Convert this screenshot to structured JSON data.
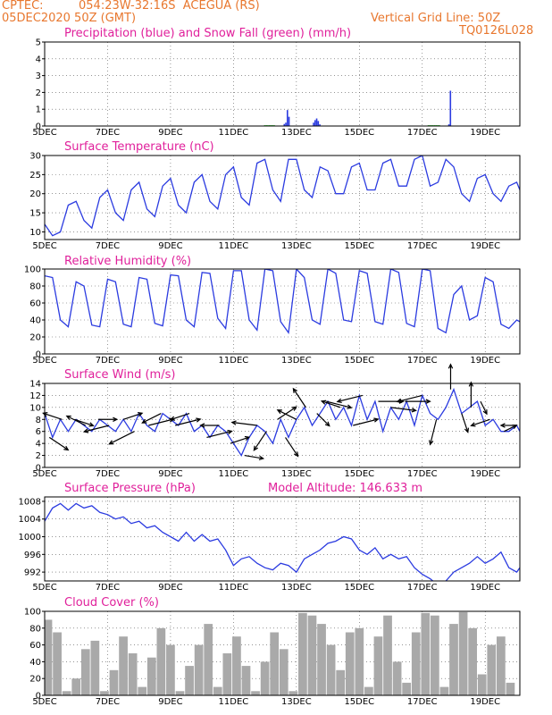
{
  "header": {
    "source": "CPTEC:",
    "location": "054:23W-32:16S  ACEGUA (RS)",
    "run": "05DEC2020 50Z (GMT)",
    "grid_note": "Vertical Grid Line: 50Z",
    "model_code": "TQ0126L028"
  },
  "colors": {
    "header": "#e8772e",
    "title": "#e0209b",
    "series": "#2b3be0",
    "snow": "#2fbf2f",
    "cloud": "#a9a9a9"
  },
  "x_axis": {
    "start_day": 5,
    "end_day": 20.1,
    "tick_days": [
      5,
      7,
      9,
      11,
      13,
      15,
      17,
      19
    ],
    "tick_labels": [
      "5DEC",
      "7DEC",
      "9DEC",
      "11DEC",
      "13DEC",
      "15DEC",
      "17DEC",
      "19DEC"
    ]
  },
  "chart_data": [
    {
      "type": "bar",
      "title": "Precipitation (blue) and Snow Fall (green) (mm/h)",
      "ylim": [
        0,
        5
      ],
      "yticks": [
        0,
        1,
        2,
        3,
        4,
        5
      ],
      "series": [
        {
          "name": "Precipitation",
          "color": "#2b3be0",
          "x": [
            12.62,
            12.67,
            12.72,
            12.77,
            13.55,
            13.6,
            13.65,
            13.7,
            13.75,
            17.85,
            17.9
          ],
          "values": [
            0.12,
            0.2,
            0.95,
            0.55,
            0.2,
            0.35,
            0.45,
            0.3,
            0.1,
            0.1,
            2.1
          ]
        },
        {
          "name": "Snow Fall",
          "color": "#2fbf2f",
          "x": [
            12.0,
            12.05,
            12.1,
            12.15,
            12.2,
            12.25,
            12.3,
            17.2,
            17.25,
            17.3,
            17.35,
            17.4,
            17.45,
            17.5,
            17.55
          ],
          "values": [
            0.05,
            0.05,
            0.05,
            0.05,
            0.05,
            0.05,
            0.05,
            0.05,
            0.05,
            0.05,
            0.05,
            0.05,
            0.05,
            0.05,
            0.05
          ]
        }
      ]
    },
    {
      "type": "line",
      "title": "Surface Temperature (nC)",
      "ylim": [
        8,
        30
      ],
      "yticks": [
        10,
        15,
        20,
        25,
        30
      ],
      "series": [
        {
          "name": "Temperature",
          "x": [
            5.0,
            5.25,
            5.5,
            5.75,
            6.0,
            6.25,
            6.5,
            6.75,
            7.0,
            7.25,
            7.5,
            7.75,
            8.0,
            8.25,
            8.5,
            8.75,
            9.0,
            9.25,
            9.5,
            9.75,
            10.0,
            10.25,
            10.5,
            10.75,
            11.0,
            11.25,
            11.5,
            11.75,
            12.0,
            12.25,
            12.5,
            12.75,
            13.0,
            13.25,
            13.5,
            13.75,
            14.0,
            14.25,
            14.5,
            14.75,
            15.0,
            15.25,
            15.5,
            15.75,
            16.0,
            16.25,
            16.5,
            16.75,
            17.0,
            17.25,
            17.5,
            17.75,
            18.0,
            18.25,
            18.5,
            18.75,
            19.0,
            19.25,
            19.5,
            19.75,
            20.0,
            20.1
          ],
          "values": [
            12,
            9,
            10,
            17,
            18,
            13,
            11,
            19,
            21,
            15,
            13,
            21,
            23,
            16,
            14,
            22,
            24,
            17,
            15,
            23,
            25,
            18,
            16,
            25,
            27,
            19,
            17,
            28,
            29,
            21,
            18,
            29,
            29,
            21,
            19,
            27,
            26,
            20,
            20,
            27,
            28,
            21,
            21,
            28,
            29,
            22,
            22,
            29,
            30,
            22,
            23,
            29,
            27,
            20,
            18,
            24,
            25,
            20,
            18,
            22,
            23,
            21
          ]
        }
      ]
    },
    {
      "type": "line",
      "title": "Relative Humidity (%)",
      "ylim": [
        0,
        100
      ],
      "yticks": [
        0,
        20,
        40,
        60,
        80,
        100
      ],
      "series": [
        {
          "name": "Relative Humidity",
          "x": [
            5.0,
            5.25,
            5.5,
            5.75,
            6.0,
            6.25,
            6.5,
            6.75,
            7.0,
            7.25,
            7.5,
            7.75,
            8.0,
            8.25,
            8.5,
            8.75,
            9.0,
            9.25,
            9.5,
            9.75,
            10.0,
            10.25,
            10.5,
            10.75,
            11.0,
            11.25,
            11.5,
            11.75,
            12.0,
            12.25,
            12.5,
            12.75,
            13.0,
            13.25,
            13.5,
            13.75,
            14.0,
            14.25,
            14.5,
            14.75,
            15.0,
            15.25,
            15.5,
            15.75,
            16.0,
            16.25,
            16.5,
            16.75,
            17.0,
            17.25,
            17.5,
            17.75,
            18.0,
            18.25,
            18.5,
            18.75,
            19.0,
            19.25,
            19.5,
            19.75,
            20.0,
            20.1
          ],
          "values": [
            92,
            90,
            40,
            32,
            85,
            80,
            34,
            32,
            88,
            85,
            35,
            32,
            90,
            88,
            36,
            33,
            93,
            92,
            40,
            32,
            96,
            95,
            42,
            30,
            98,
            98,
            40,
            28,
            100,
            98,
            38,
            25,
            100,
            90,
            40,
            35,
            100,
            95,
            40,
            38,
            98,
            95,
            38,
            35,
            100,
            96,
            36,
            32,
            100,
            98,
            30,
            25,
            70,
            80,
            40,
            45,
            90,
            85,
            35,
            30,
            40,
            38
          ]
        }
      ]
    },
    {
      "type": "line",
      "title": "Surface Wind (m/s)",
      "ylim": [
        0,
        14
      ],
      "yticks": [
        0,
        2,
        4,
        6,
        8,
        10,
        12,
        14
      ],
      "series": [
        {
          "name": "Wind Speed",
          "x": [
            5.0,
            5.25,
            5.5,
            5.75,
            6.0,
            6.25,
            6.5,
            6.75,
            7.0,
            7.25,
            7.5,
            7.75,
            8.0,
            8.25,
            8.5,
            8.75,
            9.0,
            9.25,
            9.5,
            9.75,
            10.0,
            10.25,
            10.5,
            10.75,
            11.0,
            11.25,
            11.5,
            11.75,
            12.0,
            12.25,
            12.5,
            12.75,
            13.0,
            13.25,
            13.5,
            13.75,
            14.0,
            14.25,
            14.5,
            14.75,
            15.0,
            15.25,
            15.5,
            15.75,
            16.0,
            16.25,
            16.5,
            16.75,
            17.0,
            17.25,
            17.5,
            17.75,
            18.0,
            18.25,
            18.5,
            18.75,
            19.0,
            19.25,
            19.5,
            19.75,
            20.0,
            20.1
          ],
          "values": [
            9,
            5,
            8,
            6,
            8,
            7,
            6,
            8,
            7,
            6,
            8,
            6,
            9,
            7,
            6,
            9,
            8,
            7,
            9,
            6,
            7,
            5,
            7,
            6,
            4,
            2,
            5,
            7,
            6,
            4,
            8,
            5,
            8,
            10,
            7,
            9,
            11,
            8,
            10,
            7,
            12,
            8,
            11,
            6,
            10,
            8,
            11,
            7,
            12,
            9,
            8,
            10,
            13,
            9,
            10,
            11,
            7,
            8,
            6,
            6,
            7,
            6
          ]
        }
      ],
      "wind_vectors": [
        {
          "day": 5.15,
          "u": 3,
          "v": -2
        },
        {
          "day": 5.55,
          "u": -3,
          "v": 1
        },
        {
          "day": 5.95,
          "u": 3,
          "v": -1
        },
        {
          "day": 6.3,
          "u": -3,
          "v": 1.5
        },
        {
          "day": 6.7,
          "u": 3,
          "v": 0
        },
        {
          "day": 7.05,
          "u": -4,
          "v": -1
        },
        {
          "day": 7.5,
          "u": 3,
          "v": 1
        },
        {
          "day": 7.85,
          "u": -4,
          "v": -2
        },
        {
          "day": 8.3,
          "u": 4,
          "v": 1
        },
        {
          "day": 8.7,
          "u": -3,
          "v": -1.5
        },
        {
          "day": 9.15,
          "u": 4,
          "v": 1
        },
        {
          "day": 9.6,
          "u": -3,
          "v": -1
        },
        {
          "day": 10.15,
          "u": 4,
          "v": 1
        },
        {
          "day": 10.55,
          "u": -3,
          "v": 0
        },
        {
          "day": 10.9,
          "u": 3,
          "v": 1
        },
        {
          "day": 11.35,
          "u": 3,
          "v": -0.5
        },
        {
          "day": 11.75,
          "u": -4,
          "v": 0.5
        },
        {
          "day": 12.05,
          "u": -2,
          "v": -3
        },
        {
          "day": 12.4,
          "u": 3,
          "v": 2
        },
        {
          "day": 12.65,
          "u": 2,
          "v": -3
        },
        {
          "day": 13.0,
          "u": -3,
          "v": 1.5
        },
        {
          "day": 13.3,
          "u": -2,
          "v": 3
        },
        {
          "day": 13.65,
          "u": 2,
          "v": -2
        },
        {
          "day": 13.95,
          "u": 4,
          "v": -1
        },
        {
          "day": 14.4,
          "u": -3,
          "v": 1
        },
        {
          "day": 14.8,
          "u": 4,
          "v": 1
        },
        {
          "day": 15.1,
          "u": -4,
          "v": -1
        },
        {
          "day": 15.6,
          "u": 4,
          "v": 0
        },
        {
          "day": 16.0,
          "u": 4,
          "v": -0.5
        },
        {
          "day": 16.45,
          "u": 4,
          "v": 0
        },
        {
          "day": 17.0,
          "u": -4,
          "v": -1
        },
        {
          "day": 17.45,
          "u": -1,
          "v": -4
        },
        {
          "day": 17.9,
          "u": 0,
          "v": 4
        },
        {
          "day": 18.25,
          "u": 1,
          "v": -3
        },
        {
          "day": 18.55,
          "u": 0,
          "v": 4
        },
        {
          "day": 18.85,
          "u": 1,
          "v": -2
        },
        {
          "day": 19.15,
          "u": -3,
          "v": -1
        },
        {
          "day": 19.6,
          "u": 2,
          "v": 1
        },
        {
          "day": 19.9,
          "u": -2,
          "v": 0
        }
      ]
    },
    {
      "type": "line",
      "title": "Surface Pressure (hPa)",
      "subtitle": "Model Altitude: 146.633 m",
      "ylim": [
        990,
        1009
      ],
      "yticks": [
        992,
        996,
        1000,
        1004,
        1008
      ],
      "series": [
        {
          "name": "Pressure",
          "x": [
            5.0,
            5.25,
            5.5,
            5.75,
            6.0,
            6.25,
            6.5,
            6.75,
            7.0,
            7.25,
            7.5,
            7.75,
            8.0,
            8.25,
            8.5,
            8.75,
            9.0,
            9.25,
            9.5,
            9.75,
            10.0,
            10.25,
            10.5,
            10.75,
            11.0,
            11.25,
            11.5,
            11.75,
            12.0,
            12.25,
            12.5,
            12.75,
            13.0,
            13.25,
            13.5,
            13.75,
            14.0,
            14.25,
            14.5,
            14.75,
            15.0,
            15.25,
            15.5,
            15.75,
            16.0,
            16.25,
            16.5,
            16.75,
            17.0,
            17.25,
            17.5,
            17.75,
            18.0,
            18.25,
            18.5,
            18.75,
            19.0,
            19.25,
            19.5,
            19.75,
            20.0,
            20.1
          ],
          "values": [
            1003.5,
            1006.5,
            1007.5,
            1006,
            1007.5,
            1006.5,
            1007,
            1005.5,
            1005,
            1004,
            1004.5,
            1003,
            1003.5,
            1002,
            1002.5,
            1001,
            1000,
            999,
            1001,
            999,
            1000.5,
            999,
            999.5,
            997,
            993.5,
            995,
            995.5,
            994,
            993,
            992.5,
            994,
            993.5,
            992,
            995,
            996,
            997,
            998.5,
            999,
            1000,
            999.5,
            997,
            996,
            997.5,
            995,
            996,
            995,
            995.5,
            993,
            991.5,
            990.5,
            989,
            990,
            992,
            993,
            994,
            995.5,
            994,
            995,
            996.5,
            993,
            992,
            993
          ]
        }
      ]
    },
    {
      "type": "bar",
      "title": "Cloud Cover (%)",
      "ylim": [
        0,
        100
      ],
      "yticks": [
        0,
        20,
        40,
        60,
        80,
        100
      ],
      "series": [
        {
          "name": "Cloud Cover",
          "x": [
            5.1,
            5.4,
            5.7,
            6.0,
            6.3,
            6.6,
            6.9,
            7.2,
            7.5,
            7.8,
            8.1,
            8.4,
            8.7,
            9.0,
            9.3,
            9.6,
            9.9,
            10.2,
            10.5,
            10.8,
            11.1,
            11.4,
            11.7,
            12.0,
            12.3,
            12.6,
            12.9,
            13.2,
            13.5,
            13.8,
            14.1,
            14.4,
            14.7,
            15.0,
            15.3,
            15.6,
            15.9,
            16.2,
            16.5,
            16.8,
            17.1,
            17.4,
            17.7,
            18.0,
            18.3,
            18.6,
            18.9,
            19.2,
            19.5,
            19.8
          ],
          "values": [
            90,
            75,
            5,
            20,
            55,
            65,
            5,
            30,
            70,
            50,
            10,
            45,
            80,
            60,
            5,
            35,
            60,
            85,
            10,
            50,
            70,
            35,
            5,
            40,
            75,
            55,
            5,
            98,
            95,
            85,
            60,
            30,
            75,
            80,
            10,
            70,
            95,
            40,
            15,
            75,
            98,
            95,
            10,
            85,
            99,
            80,
            25,
            60,
            70,
            15
          ]
        }
      ]
    }
  ]
}
